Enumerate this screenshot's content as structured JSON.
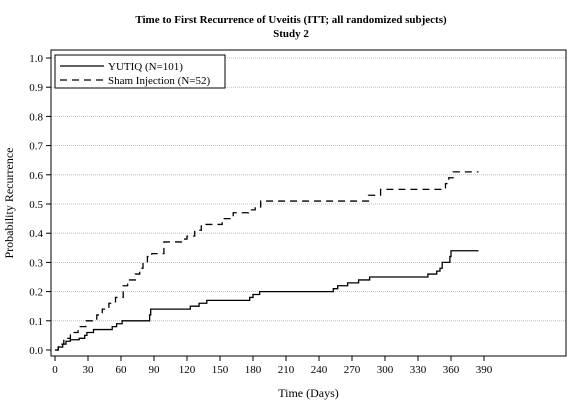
{
  "chart_data": {
    "type": "line",
    "title": "Time to First Recurrence of Uveitis (ITT; all randomized subjects)",
    "subtitle": "Study 2",
    "xlabel": "Time (Days)",
    "ylabel": "Probability Recurrence",
    "xlim": [
      0,
      395
    ],
    "ylim": [
      0,
      1.0
    ],
    "x_ticks": [
      0,
      30,
      60,
      90,
      120,
      150,
      180,
      210,
      240,
      270,
      300,
      330,
      360,
      390
    ],
    "y_ticks": [
      0.0,
      0.1,
      0.2,
      0.3,
      0.4,
      0.5,
      0.6,
      0.7,
      0.8,
      0.9,
      1.0
    ],
    "x_tick_labels": [
      "0",
      "30",
      "60",
      "90",
      "120",
      "150",
      "180",
      "210",
      "240",
      "270",
      "300",
      "330",
      "360",
      "390"
    ],
    "y_tick_labels": [
      "0.0",
      "0.1",
      "0.2",
      "0.3",
      "0.4",
      "0.5",
      "0.6",
      "0.7",
      "0.8",
      "0.9",
      "1.0"
    ],
    "grid": "horizontal",
    "legend_position": "top-left",
    "step": true,
    "series": [
      {
        "name": "YUTIQ (N=101)",
        "style": "solid",
        "color": "#000000",
        "points": [
          [
            0,
            0.0
          ],
          [
            3,
            0.01
          ],
          [
            7,
            0.02
          ],
          [
            10,
            0.03
          ],
          [
            14,
            0.035
          ],
          [
            22,
            0.04
          ],
          [
            27,
            0.05
          ],
          [
            29,
            0.06
          ],
          [
            35,
            0.07
          ],
          [
            52,
            0.08
          ],
          [
            56,
            0.09
          ],
          [
            61,
            0.1
          ],
          [
            86,
            0.12
          ],
          [
            87,
            0.14
          ],
          [
            123,
            0.15
          ],
          [
            131,
            0.16
          ],
          [
            138,
            0.17
          ],
          [
            177,
            0.18
          ],
          [
            180,
            0.19
          ],
          [
            186,
            0.2
          ],
          [
            253,
            0.21
          ],
          [
            257,
            0.22
          ],
          [
            266,
            0.23
          ],
          [
            276,
            0.24
          ],
          [
            286,
            0.25
          ],
          [
            339,
            0.26
          ],
          [
            347,
            0.27
          ],
          [
            350,
            0.28
          ],
          [
            352,
            0.3
          ],
          [
            359,
            0.32
          ],
          [
            360,
            0.34
          ],
          [
            385,
            0.34
          ]
        ]
      },
      {
        "name": "Sham Injection (N=52)",
        "style": "dashed",
        "color": "#000000",
        "points": [
          [
            0,
            0.0
          ],
          [
            3,
            0.02
          ],
          [
            8,
            0.04
          ],
          [
            14,
            0.06
          ],
          [
            21,
            0.08
          ],
          [
            28,
            0.1
          ],
          [
            38,
            0.12
          ],
          [
            43,
            0.14
          ],
          [
            49,
            0.16
          ],
          [
            55,
            0.18
          ],
          [
            62,
            0.22
          ],
          [
            66,
            0.24
          ],
          [
            73,
            0.26
          ],
          [
            77,
            0.28
          ],
          [
            80,
            0.3
          ],
          [
            84,
            0.32
          ],
          [
            88,
            0.33
          ],
          [
            99,
            0.37
          ],
          [
            115,
            0.38
          ],
          [
            120,
            0.39
          ],
          [
            127,
            0.41
          ],
          [
            133,
            0.43
          ],
          [
            152,
            0.45
          ],
          [
            162,
            0.47
          ],
          [
            176,
            0.48
          ],
          [
            182,
            0.49
          ],
          [
            187,
            0.51
          ],
          [
            277,
            0.51
          ],
          [
            285,
            0.53
          ],
          [
            296,
            0.55
          ],
          [
            351,
            0.55
          ],
          [
            355,
            0.57
          ],
          [
            358,
            0.59
          ],
          [
            362,
            0.61
          ],
          [
            385,
            0.61
          ]
        ]
      }
    ]
  }
}
